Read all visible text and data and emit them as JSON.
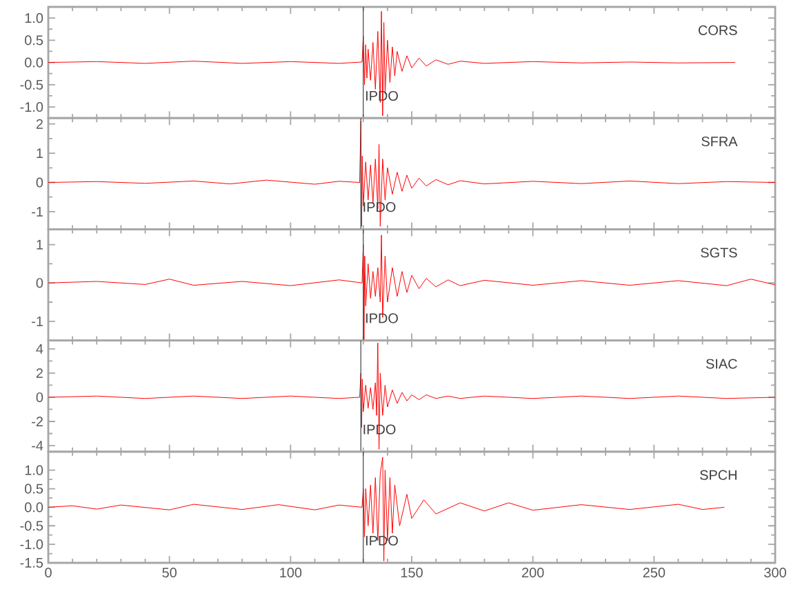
{
  "chart_data": [
    {
      "type": "line",
      "legend": false,
      "grid": false,
      "marker": "none",
      "line_style": "solid",
      "tick_labels": "y",
      "xlim": [
        0,
        300
      ],
      "ylim": [
        -1.25,
        1.25
      ],
      "xticks": [
        0,
        50,
        100,
        150,
        200,
        250,
        300
      ],
      "yticks": [
        {
          "value": -1,
          "label": "-1.0"
        },
        {
          "value": -0.5,
          "label": "-0.5"
        },
        {
          "value": 0,
          "label": "0.0"
        },
        {
          "value": 0.5,
          "label": "0.5"
        },
        {
          "value": 1,
          "label": "1.0"
        }
      ],
      "ref_lines": [
        {
          "axis": "x",
          "value": 130,
          "label": "IPDO",
          "color": "#404040"
        }
      ],
      "annotations": [
        "CORS"
      ],
      "series": [
        {
          "color": "#ff0000",
          "x": [
            0,
            20,
            40,
            60,
            80,
            100,
            120,
            129.5,
            130,
            130.5,
            131,
            131.5,
            132,
            133,
            134,
            135,
            136,
            137,
            137.5,
            138,
            138.5,
            139,
            140,
            141,
            142,
            143,
            144,
            146,
            148,
            150,
            153,
            156,
            160,
            165,
            170,
            180,
            200,
            220,
            240,
            260,
            283.5
          ],
          "values": [
            0,
            0.02,
            -0.02,
            0.03,
            -0.02,
            0.02,
            -0.02,
            0.01,
            0.6,
            -0.5,
            0.4,
            -0.35,
            0.3,
            -0.4,
            0.45,
            -0.6,
            0.7,
            -0.9,
            1.15,
            -1.2,
            0.9,
            -0.7,
            0.5,
            -0.45,
            0.35,
            -0.3,
            0.25,
            -0.2,
            0.15,
            -0.12,
            0.1,
            -0.08,
            0.06,
            -0.04,
            0.03,
            -0.02,
            0.02,
            -0.01,
            0.01,
            -0.01,
            0
          ]
        }
      ]
    },
    {
      "type": "line",
      "legend": false,
      "grid": false,
      "marker": "none",
      "line_style": "solid",
      "tick_labels": "y",
      "xlim": [
        0,
        300
      ],
      "ylim": [
        -1.6,
        2.2
      ],
      "xticks": [
        0,
        50,
        100,
        150,
        200,
        250,
        300
      ],
      "yticks": [
        -1,
        0,
        1,
        2
      ],
      "ref_lines": [
        {
          "axis": "x",
          "value": 129,
          "label": "IPDO",
          "color": "#404040"
        }
      ],
      "annotations": [
        "SFRA"
      ],
      "series": [
        {
          "color": "#ff0000",
          "x": [
            0,
            20,
            40,
            60,
            75,
            90,
            110,
            120,
            128.5,
            129,
            129.3,
            129.6,
            130,
            131,
            132,
            133,
            134,
            135,
            136,
            136.5,
            137,
            138,
            139,
            140,
            142,
            144,
            146,
            148,
            150,
            153,
            156,
            160,
            165,
            170,
            180,
            200,
            220,
            240,
            260,
            280,
            300
          ],
          "values": [
            0,
            0.03,
            -0.03,
            0.05,
            -0.05,
            0.08,
            -0.06,
            0.04,
            0,
            2.1,
            -1.5,
            0.9,
            -0.8,
            0.7,
            -0.6,
            0.6,
            -0.7,
            0.8,
            -0.9,
            1.3,
            -1.5,
            0.8,
            -0.6,
            0.5,
            -0.4,
            0.35,
            -0.3,
            0.25,
            -0.2,
            0.15,
            -0.12,
            0.1,
            -0.08,
            0.06,
            -0.05,
            0.04,
            -0.04,
            0.05,
            -0.04,
            0.03,
            0
          ]
        }
      ]
    },
    {
      "type": "line",
      "legend": false,
      "grid": false,
      "marker": "none",
      "line_style": "solid",
      "tick_labels": "y",
      "xlim": [
        0,
        300
      ],
      "ylim": [
        -1.5,
        1.4
      ],
      "xticks": [
        0,
        50,
        100,
        150,
        200,
        250,
        300
      ],
      "yticks": [
        -1,
        0,
        1
      ],
      "ref_lines": [
        {
          "axis": "x",
          "value": 130,
          "label": "IPDO",
          "color": "#404040"
        }
      ],
      "annotations": [
        "SGTS"
      ],
      "series": [
        {
          "color": "#ff0000",
          "x": [
            0,
            20,
            40,
            50,
            60,
            80,
            100,
            120,
            129.5,
            130,
            130.3,
            130.6,
            131,
            132,
            133,
            134,
            135,
            136,
            137,
            137.5,
            138,
            139,
            140,
            142,
            144,
            146,
            148,
            150,
            153,
            156,
            160,
            165,
            170,
            180,
            200,
            220,
            240,
            260,
            280,
            290,
            300
          ],
          "values": [
            0,
            0.04,
            -0.04,
            0.1,
            -0.06,
            0.04,
            -0.07,
            0.08,
            0,
            1.0,
            -1.5,
            0.7,
            -0.6,
            0.5,
            -0.4,
            0.3,
            -0.35,
            0.4,
            -0.5,
            1.25,
            -0.9,
            0.7,
            -0.5,
            0.4,
            -0.35,
            0.3,
            -0.25,
            0.2,
            -0.15,
            0.12,
            -0.1,
            0.08,
            -0.07,
            0.07,
            -0.06,
            0.06,
            -0.06,
            0.06,
            -0.07,
            0.1,
            -0.05
          ]
        }
      ]
    },
    {
      "type": "line",
      "legend": false,
      "grid": false,
      "marker": "none",
      "line_style": "solid",
      "tick_labels": "y",
      "xlim": [
        0,
        300
      ],
      "ylim": [
        -4.5,
        4.7
      ],
      "xticks": [
        0,
        50,
        100,
        150,
        200,
        250,
        300
      ],
      "yticks": [
        -4,
        -2,
        0,
        2,
        4
      ],
      "ref_lines": [
        {
          "axis": "x",
          "value": 129,
          "label": "IPDO",
          "color": "#404040"
        }
      ],
      "annotations": [
        "SIAC"
      ],
      "series": [
        {
          "color": "#ff0000",
          "x": [
            0,
            20,
            40,
            60,
            80,
            100,
            120,
            128.5,
            129,
            129.3,
            129.6,
            130,
            131,
            132,
            133,
            134,
            135,
            135.5,
            136,
            136.5,
            137,
            138,
            139,
            140,
            142,
            144,
            146,
            148,
            150,
            153,
            156,
            160,
            165,
            170,
            180,
            200,
            220,
            240,
            260,
            280,
            300
          ],
          "values": [
            0,
            0.1,
            -0.1,
            0.1,
            -0.1,
            0.1,
            -0.1,
            0,
            2.0,
            -2.5,
            1.5,
            -1.2,
            1.0,
            -0.9,
            0.8,
            -1.0,
            1.2,
            -1.5,
            4.5,
            -4.3,
            2.0,
            -1.5,
            1.0,
            -0.8,
            0.6,
            -0.5,
            0.4,
            -0.3,
            0.2,
            -0.2,
            0.2,
            -0.1,
            0.1,
            -0.1,
            0.1,
            -0.1,
            0.1,
            -0.1,
            0.1,
            -0.1,
            0
          ]
        }
      ]
    },
    {
      "type": "line",
      "legend": false,
      "grid": false,
      "marker": "none",
      "line_style": "solid",
      "xlim": [
        0,
        300
      ],
      "ylim": [
        -1.5,
        1.5
      ],
      "xticks": [
        0,
        50,
        100,
        150,
        200,
        250,
        300
      ],
      "yticks": [
        {
          "value": -1.5,
          "label": "-1.5"
        },
        {
          "value": -1,
          "label": "-1.0"
        },
        {
          "value": -0.5,
          "label": "-0.5"
        },
        {
          "value": 0,
          "label": "0.0"
        },
        {
          "value": 0.5,
          "label": "0.5"
        },
        {
          "value": 1,
          "label": "1.0"
        }
      ],
      "ref_lines": [
        {
          "axis": "x",
          "value": 130,
          "label": "IPDO",
          "color": "#404040"
        }
      ],
      "annotations": [
        "SPCH"
      ],
      "series": [
        {
          "color": "#ff0000",
          "x": [
            0,
            10,
            20,
            30,
            50,
            60,
            80,
            95,
            110,
            120,
            129.5,
            130,
            130.5,
            131,
            132,
            133,
            134,
            135,
            136,
            137,
            138,
            138.5,
            139,
            140,
            141,
            142,
            143,
            145,
            148,
            150,
            155,
            160,
            170,
            180,
            190,
            200,
            220,
            240,
            260,
            270,
            279
          ],
          "values": [
            0,
            0.04,
            -0.05,
            0.06,
            -0.07,
            0.08,
            -0.06,
            0.07,
            -0.07,
            0.06,
            0,
            0.5,
            -0.8,
            0.5,
            -0.5,
            0.6,
            -0.7,
            0.8,
            -0.9,
            0.9,
            1.35,
            -1.45,
            1.0,
            -0.9,
            0.8,
            -0.7,
            0.6,
            -0.5,
            0.35,
            -0.3,
            0.2,
            -0.18,
            0.12,
            -0.1,
            0.12,
            -0.08,
            0.07,
            -0.06,
            0.08,
            -0.06,
            0
          ]
        }
      ]
    }
  ]
}
